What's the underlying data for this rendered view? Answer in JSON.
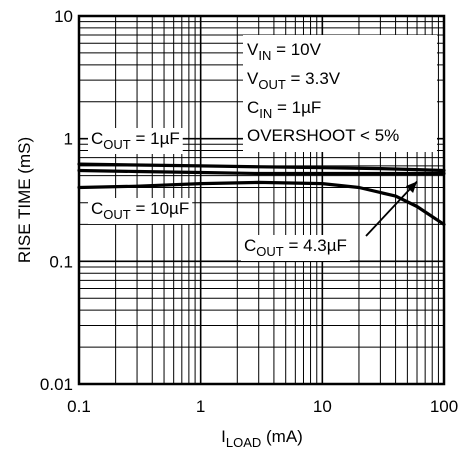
{
  "chart_data": {
    "type": "line",
    "x_scale": "log",
    "y_scale": "log",
    "xlim": [
      0.1,
      100
    ],
    "ylim": [
      0.01,
      10
    ],
    "grid": true,
    "xlabel": {
      "main": "I",
      "sub": "LOAD",
      "unit": " (mA)"
    },
    "ylabel": "RISE TIME (mS)",
    "x_ticks": [
      {
        "value": 0.1,
        "label": "0.1"
      },
      {
        "value": 1,
        "label": "1"
      },
      {
        "value": 10,
        "label": "10"
      },
      {
        "value": 100,
        "label": "100"
      }
    ],
    "y_ticks": [
      {
        "value": 10,
        "label": "10"
      },
      {
        "value": 1,
        "label": "1"
      },
      {
        "value": 0.1,
        "label": "0.1"
      },
      {
        "value": 0.01,
        "label": "0.01"
      }
    ],
    "conditions": [
      {
        "main": "V",
        "sub": "IN",
        "rest": " = 10V"
      },
      {
        "main": "V",
        "sub": "OUT",
        "rest": " = 3.3V"
      },
      {
        "main": "C",
        "sub": "IN",
        "rest": " = 1µF"
      },
      {
        "main": "",
        "sub": "",
        "rest": "OVERSHOOT < 5%"
      }
    ],
    "series": [
      {
        "label": {
          "main": "C",
          "sub": "OUT",
          "rest": " = 1µF"
        },
        "x": [
          0.1,
          0.3,
          1,
          3,
          10,
          30,
          60,
          100
        ],
        "y": [
          0.62,
          0.61,
          0.6,
          0.59,
          0.58,
          0.57,
          0.56,
          0.55
        ]
      },
      {
        "label": {
          "main": "C",
          "sub": "OUT",
          "rest": " = 4.3µF"
        },
        "x": [
          0.1,
          0.3,
          1,
          3,
          10,
          30,
          60,
          100
        ],
        "y": [
          0.55,
          0.54,
          0.53,
          0.52,
          0.52,
          0.52,
          0.52,
          0.52
        ]
      },
      {
        "label": {
          "main": "C",
          "sub": "OUT",
          "rest": " = 10µF"
        },
        "x": [
          0.1,
          0.3,
          1,
          3,
          10,
          20,
          40,
          60,
          100
        ],
        "y": [
          0.4,
          0.41,
          0.43,
          0.44,
          0.43,
          0.4,
          0.34,
          0.28,
          0.2
        ]
      }
    ],
    "colors": {
      "line": "#000000",
      "grid": "#000000",
      "background": "#ffffff"
    }
  }
}
